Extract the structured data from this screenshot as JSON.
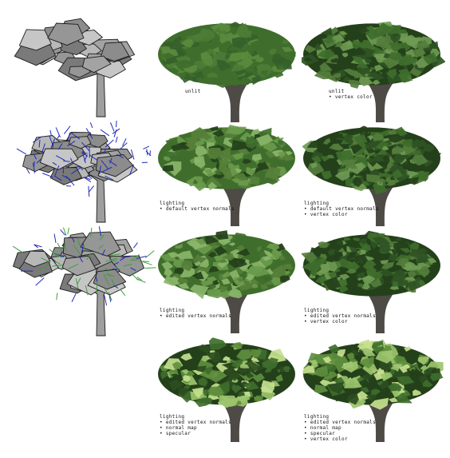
{
  "figure": {
    "columns": [
      "wireframe",
      "render",
      "render-with-vertex-color"
    ],
    "rows": [
      {
        "wireframe_style": "mesh",
        "left": {
          "caption_lines": [
            "unlit"
          ]
        },
        "right": {
          "caption_lines": [
            "unlit",
            "• vertex color"
          ]
        }
      },
      {
        "wireframe_style": "mesh-with-normals-blue",
        "left": {
          "caption_lines": [
            "lighting",
            "• default vertex normals"
          ]
        },
        "right": {
          "caption_lines": [
            "lighting",
            "• default vertex normals",
            "• vertex color"
          ]
        }
      },
      {
        "wireframe_style": "mesh-with-normals-edited",
        "left": {
          "caption_lines": [
            "lighting",
            "• edited vertex normals"
          ]
        },
        "right": {
          "caption_lines": [
            "lighting",
            "• edited vertex normals",
            "• vertex color"
          ]
        }
      },
      {
        "wireframe_style": "none",
        "left": {
          "caption_lines": [
            "lighting",
            "• edited vertex normals",
            "• normal map",
            "• specular"
          ]
        },
        "right": {
          "caption_lines": [
            "lighting",
            "• edited vertex normals",
            "• normal map",
            "• specular",
            "• vertex color"
          ]
        }
      }
    ],
    "colors": {
      "foliage_base": "#3f6e2c",
      "foliage_light": "#6a9a4c",
      "foliage_dark": "#24401a",
      "trunk": "#4e4a45",
      "mesh_fill": "#9a9a9a",
      "mesh_edge": "#1c1c1c",
      "normal_blue": "#1f2bb8",
      "normal_green": "#3ca03c"
    }
  }
}
